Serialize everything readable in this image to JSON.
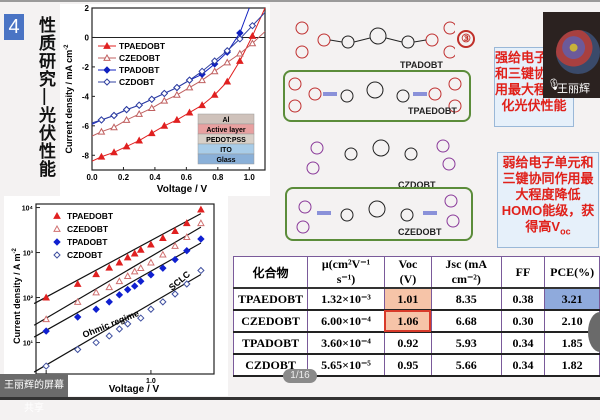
{
  "slide": {
    "number": "4",
    "vertical_title": "性质研究—光伏性能",
    "page_indicator": "1/16",
    "share_label": "王丽辉的屏幕共享",
    "presenter_name": "王丽辉"
  },
  "jv_chart": {
    "ylabel": "Current density / mA cm",
    "ylabel_sup": "-2",
    "xlabel": "Voltage / V",
    "xticks": [
      "0.0",
      "0.2",
      "0.4",
      "0.6",
      "0.8",
      "1.0"
    ],
    "yticks": [
      "2",
      "0",
      "-2",
      "-4",
      "-6",
      "-8"
    ],
    "device_layers": [
      "Al",
      "Active layer",
      "PEDOT:PSS",
      "ITO",
      "Glass"
    ],
    "legend": [
      "TPAEDOBT",
      "CZEDOBT",
      "TPADOBT",
      "CZDOBT"
    ]
  },
  "sclc_chart": {
    "ylabel": "Current density / A m",
    "ylabel_sup": "-2",
    "xlabel": "Voltage / V",
    "xticks": [
      "0.1",
      "1.0"
    ],
    "yticks": [
      "10⁴",
      "10³",
      "10²",
      "10¹"
    ],
    "annotations": [
      "Ohmic regime",
      "SCLC"
    ],
    "legend": [
      "TPAEDOBT",
      "CZEDOBT",
      "TPADOBT",
      "CZDOBT"
    ]
  },
  "chart_data": [
    {
      "type": "line",
      "title": "",
      "xlabel": "Voltage / V",
      "ylabel": "Current density / mA cm-2",
      "xlim": [
        0.0,
        1.1
      ],
      "ylim": [
        -9,
        2
      ],
      "legend_position": "top-left",
      "series": [
        {
          "name": "TPAEDOBT",
          "color": "#e02020",
          "marker": "filled-triangle",
          "x": [
            0,
            0.06,
            0.14,
            0.22,
            0.3,
            0.38,
            0.46,
            0.54,
            0.62,
            0.7,
            0.78,
            0.86,
            0.94,
            1.02,
            1.1
          ],
          "y": [
            -8.4,
            -8.1,
            -7.8,
            -7.4,
            -7.0,
            -6.5,
            -6.0,
            -5.6,
            -5.1,
            -4.6,
            -3.9,
            -3.0,
            -1.6,
            0.1,
            2.0
          ]
        },
        {
          "name": "CZEDOBT",
          "color": "#c06060",
          "marker": "open-triangle",
          "x": [
            0,
            0.06,
            0.14,
            0.22,
            0.3,
            0.38,
            0.46,
            0.54,
            0.62,
            0.7,
            0.78,
            0.86,
            0.94,
            1.02,
            1.1
          ],
          "y": [
            -6.7,
            -6.4,
            -6.1,
            -5.6,
            -5.2,
            -4.8,
            -4.3,
            -3.9,
            -3.4,
            -2.9,
            -2.3,
            -1.7,
            -1.1,
            -0.4,
            0.4
          ]
        },
        {
          "name": "TPADOBT",
          "color": "#1020c0",
          "marker": "filled-diamond",
          "x": [
            0,
            0.06,
            0.14,
            0.22,
            0.3,
            0.38,
            0.46,
            0.54,
            0.62,
            0.7,
            0.78,
            0.86,
            0.94,
            1.0
          ],
          "y": [
            -5.9,
            -5.6,
            -5.3,
            -4.9,
            -4.6,
            -4.2,
            -3.8,
            -3.4,
            -2.9,
            -2.5,
            -1.8,
            -1.0,
            0.3,
            2.0
          ]
        },
        {
          "name": "CZDOBT",
          "color": "#3040a0",
          "marker": "open-diamond",
          "x": [
            0,
            0.06,
            0.14,
            0.22,
            0.3,
            0.38,
            0.46,
            0.54,
            0.62,
            0.7,
            0.78,
            0.86,
            0.94,
            1.02,
            1.1
          ],
          "y": [
            -5.8,
            -5.6,
            -5.3,
            -4.9,
            -4.6,
            -4.2,
            -3.8,
            -3.4,
            -2.9,
            -2.3,
            -1.6,
            -0.9,
            -0.1,
            0.8,
            1.7
          ]
        }
      ]
    },
    {
      "type": "scatter",
      "title": "",
      "xlabel": "Voltage / V",
      "ylabel": "Current density / A m-2",
      "xscale": "log",
      "yscale": "log",
      "xlim": [
        0.08,
        4
      ],
      "ylim": [
        2,
        12000
      ],
      "legend_position": "top-left",
      "annotations": [
        "Ohmic regime",
        "SCLC"
      ],
      "series": [
        {
          "name": "TPAEDOBT",
          "color": "#e02020",
          "marker": "filled-triangle",
          "x": [
            0.1,
            0.2,
            0.3,
            0.4,
            0.5,
            0.6,
            0.7,
            0.8,
            1.0,
            1.3,
            1.7,
            2.2,
            3.0
          ],
          "y": [
            100,
            200,
            330,
            460,
            600,
            780,
            950,
            1150,
            1500,
            2100,
            3000,
            4500,
            9000
          ]
        },
        {
          "name": "CZEDOBT",
          "color": "#d07070",
          "marker": "open-triangle",
          "x": [
            0.1,
            0.2,
            0.3,
            0.4,
            0.5,
            0.6,
            0.7,
            0.8,
            1.0,
            1.3,
            1.7,
            2.2,
            3.0
          ],
          "y": [
            33,
            80,
            130,
            170,
            230,
            300,
            380,
            450,
            600,
            900,
            1400,
            2200,
            4500
          ]
        },
        {
          "name": "TPADOBT",
          "color": "#1020d0",
          "marker": "filled-diamond",
          "x": [
            0.1,
            0.2,
            0.3,
            0.4,
            0.5,
            0.6,
            0.7,
            0.8,
            1.0,
            1.3,
            1.7,
            2.2,
            3.0
          ],
          "y": [
            18,
            37,
            55,
            80,
            115,
            150,
            180,
            230,
            320,
            450,
            700,
            1100,
            2000
          ]
        },
        {
          "name": "CZDOBT",
          "color": "#4050a0",
          "marker": "open-diamond",
          "x": [
            0.1,
            0.2,
            0.3,
            0.4,
            0.5,
            0.6,
            0.8,
            1.0,
            1.3,
            1.7,
            2.2,
            3.0
          ],
          "y": [
            3,
            7,
            10,
            14,
            20,
            26,
            35,
            55,
            80,
            120,
            200,
            400
          ]
        }
      ]
    }
  ],
  "structures": [
    {
      "name": "TPADOBT",
      "substituent_left": "C8H17O",
      "substituent_right": "OC8H17"
    },
    {
      "name": "TPAEDOBT",
      "substituent_left": "C8H17O",
      "substituent_right": "OC8H17"
    },
    {
      "name": "CZDOBT",
      "substituent_left": "C8H17O",
      "substituent_right": "OC8H17",
      "alkyl": "C6H13"
    },
    {
      "name": "CZEDOBT",
      "substituent_left": "C8H17O",
      "substituent_right": "OC8H17",
      "alkyl": "C6H13"
    }
  ],
  "circle_marker": "③",
  "callouts": [
    {
      "text": "强给电子单元和三键协同作用最大程度优化光伏性能"
    },
    {
      "text": "弱给电子单元和三键协同作用最大程度降低HOMO能级，获得高V",
      "sub": "oc"
    }
  ],
  "table": {
    "headers": [
      "化合物",
      "μ(cm²V⁻¹ s⁻¹)",
      "Voc (V)",
      "Jsc (mA cm⁻²)",
      "FF",
      "PCE(%)"
    ],
    "rows": [
      [
        "TPAEDOBT",
        "1.32×10⁻³",
        "1.01",
        "8.35",
        "0.38",
        "3.21"
      ],
      [
        "CZEDOBT",
        "6.00×10⁻⁴",
        "1.06",
        "6.68",
        "0.30",
        "2.10"
      ],
      [
        "TPADOBT",
        "3.60×10⁻⁴",
        "0.92",
        "5.93",
        "0.34",
        "1.85"
      ],
      [
        "CZDOBT",
        "5.65×10⁻⁵",
        "0.95",
        "5.66",
        "0.34",
        "1.82"
      ]
    ],
    "highlight_colors": {
      "voc": "#f6c4a8",
      "pce": "#8faadc",
      "border": "#d83a2a"
    }
  }
}
